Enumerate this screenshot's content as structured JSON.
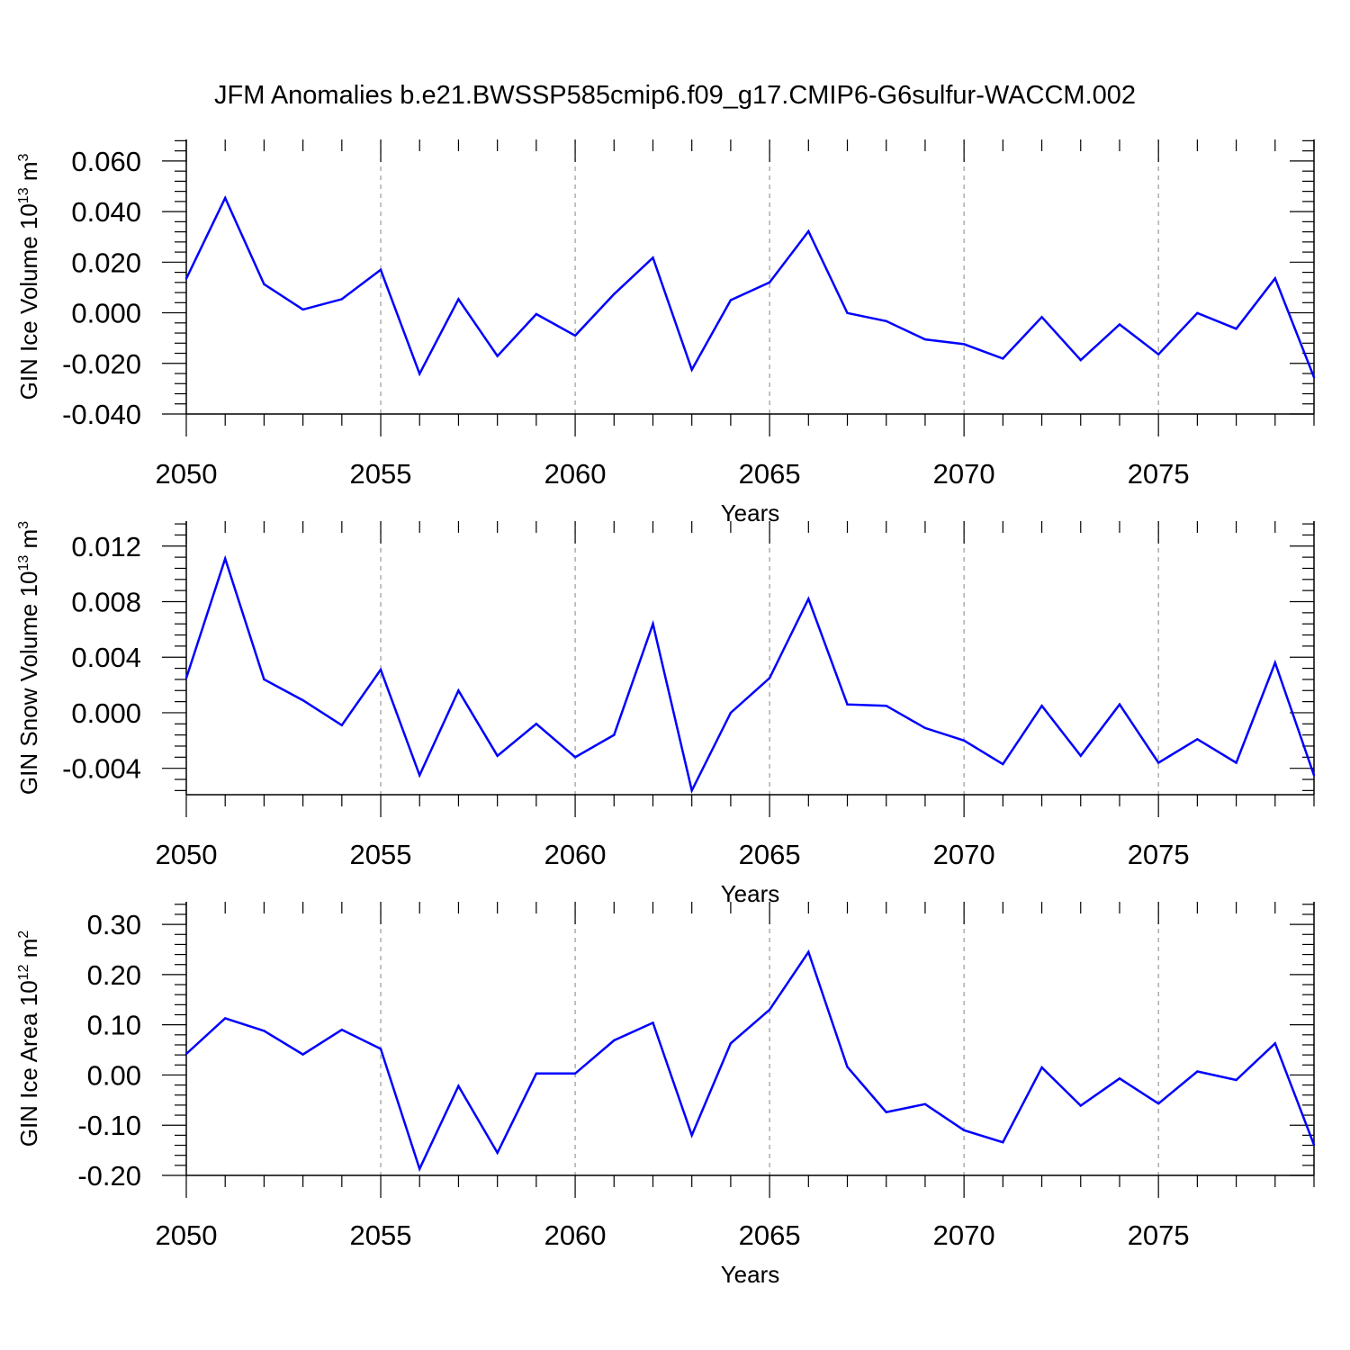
{
  "title": "JFM Anomalies b.e21.BWSSP585cmip6.f09_g17.CMIP6-G6sulfur-WACCM.002",
  "colors": {
    "series": "#0000ff",
    "axis": "#000000",
    "grid": "#999999"
  },
  "chart_data": [
    {
      "type": "line",
      "name": "ice-volume",
      "xlabel": "Years",
      "ylabel": "GIN Ice Volume 10",
      "ylabel_exp": "13",
      "ylabel_unit": " m",
      "ylabel_unit_exp": "3",
      "xlim": [
        2050,
        2079
      ],
      "ylim": [
        -0.04,
        0.0685
      ],
      "x_ticks": [
        2050,
        2055,
        2060,
        2065,
        2070,
        2075
      ],
      "x_tick_labels": [
        "2050",
        "2055",
        "2060",
        "2065",
        "2070",
        "2075"
      ],
      "y_ticks": [
        -0.04,
        -0.02,
        0.0,
        0.02,
        0.04,
        0.06
      ],
      "y_tick_labels": [
        "-0.040",
        "-0.020",
        "0.000",
        "0.020",
        "0.040",
        "0.060"
      ],
      "grid_x": [
        2055,
        2060,
        2065,
        2070,
        2075
      ],
      "x": [
        2050,
        2051,
        2052,
        2053,
        2054,
        2055,
        2056,
        2057,
        2058,
        2059,
        2060,
        2061,
        2062,
        2063,
        2064,
        2065,
        2066,
        2067,
        2068,
        2069,
        2070,
        2071,
        2072,
        2073,
        2074,
        2075,
        2076,
        2077,
        2078,
        2079
      ],
      "values": [
        0.0135,
        0.0454,
        0.0113,
        0.0013,
        0.0054,
        0.017,
        -0.0241,
        0.0054,
        -0.0171,
        -0.0005,
        -0.009,
        0.0074,
        0.0218,
        -0.0225,
        0.005,
        0.012,
        0.0322,
        -0.0001,
        -0.0033,
        -0.0105,
        -0.0124,
        -0.0181,
        -0.0017,
        -0.0187,
        -0.0046,
        -0.0164,
        -0.0001,
        -0.0063,
        0.0136,
        -0.0255
      ]
    },
    {
      "type": "line",
      "name": "snow-volume",
      "xlabel": "Years",
      "ylabel": "GIN Snow Volume 10",
      "ylabel_exp": "13",
      "ylabel_unit": " m",
      "ylabel_unit_exp": "3",
      "xlim": [
        2050,
        2079
      ],
      "ylim": [
        -0.0059,
        0.0138
      ],
      "x_ticks": [
        2050,
        2055,
        2060,
        2065,
        2070,
        2075
      ],
      "x_tick_labels": [
        "2050",
        "2055",
        "2060",
        "2065",
        "2070",
        "2075"
      ],
      "y_ticks": [
        -0.004,
        0.0,
        0.004,
        0.008,
        0.012
      ],
      "y_tick_labels": [
        "-0.004",
        "0.000",
        "0.004",
        "0.008",
        "0.012"
      ],
      "grid_x": [
        2055,
        2060,
        2065,
        2070,
        2075
      ],
      "x": [
        2050,
        2051,
        2052,
        2053,
        2054,
        2055,
        2056,
        2057,
        2058,
        2059,
        2060,
        2061,
        2062,
        2063,
        2064,
        2065,
        2066,
        2067,
        2068,
        2069,
        2070,
        2071,
        2072,
        2073,
        2074,
        2075,
        2076,
        2077,
        2078,
        2079
      ],
      "values": [
        0.0025,
        0.0111,
        0.0024,
        0.0009,
        -0.0009,
        0.0031,
        -0.0045,
        0.0016,
        -0.0031,
        -0.0008,
        -0.0032,
        -0.0016,
        0.0064,
        -0.0056,
        0.0,
        0.0025,
        0.0082,
        0.0006,
        0.0005,
        -0.0011,
        -0.002,
        -0.0037,
        0.0005,
        -0.0031,
        0.0006,
        -0.0036,
        -0.0019,
        -0.0036,
        0.0036,
        -0.0045
      ]
    },
    {
      "type": "line",
      "name": "ice-area",
      "xlabel": "Years",
      "ylabel": "GIN Ice Area 10",
      "ylabel_exp": "12",
      "ylabel_unit": " m",
      "ylabel_unit_exp": "2",
      "xlim": [
        2050,
        2079
      ],
      "ylim": [
        -0.2,
        0.345
      ],
      "x_ticks": [
        2050,
        2055,
        2060,
        2065,
        2070,
        2075
      ],
      "x_tick_labels": [
        "2050",
        "2055",
        "2060",
        "2065",
        "2070",
        "2075"
      ],
      "y_ticks": [
        -0.2,
        -0.1,
        0.0,
        0.1,
        0.2,
        0.3
      ],
      "y_tick_labels": [
        "-0.20",
        "-0.10",
        "0.00",
        "0.10",
        "0.20",
        "0.30"
      ],
      "grid_x": [
        2055,
        2060,
        2065,
        2070,
        2075
      ],
      "x": [
        2050,
        2051,
        2052,
        2053,
        2054,
        2055,
        2056,
        2057,
        2058,
        2059,
        2060,
        2061,
        2062,
        2063,
        2064,
        2065,
        2066,
        2067,
        2068,
        2069,
        2070,
        2071,
        2072,
        2073,
        2074,
        2075,
        2076,
        2077,
        2078,
        2079
      ],
      "values": [
        0.042,
        0.113,
        0.088,
        0.041,
        0.09,
        0.052,
        -0.187,
        -0.022,
        -0.155,
        0.003,
        0.003,
        0.069,
        0.104,
        -0.12,
        0.063,
        0.13,
        0.245,
        0.016,
        -0.074,
        -0.058,
        -0.11,
        -0.134,
        0.015,
        -0.061,
        -0.007,
        -0.057,
        0.007,
        -0.01,
        0.063,
        -0.139
      ]
    }
  ]
}
